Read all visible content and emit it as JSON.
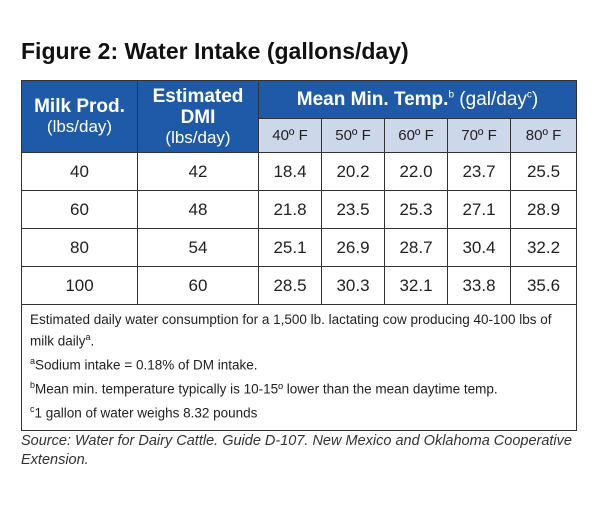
{
  "title": "Figure 2:  Water Intake (gallons/day)",
  "headers": {
    "milk_prod_main": "Milk Prod.",
    "milk_prod_sub": "(lbs/day)",
    "dmi_main": "Estimated DMI",
    "dmi_sub": "(lbs/day)",
    "mean_main": "Mean Min. Temp.",
    "mean_sup": "b",
    "mean_unit": "(gal/day",
    "mean_unit_sup": "c",
    "mean_unit_close": ")",
    "temps": [
      "40º F",
      "50º F",
      "60º F",
      "70º F",
      "80º F"
    ]
  },
  "rows": [
    {
      "milk": "40",
      "dmi": "42",
      "values": [
        "18.4",
        "20.2",
        "22.0",
        "23.7",
        "25.5"
      ]
    },
    {
      "milk": "60",
      "dmi": "48",
      "values": [
        "21.8",
        "23.5",
        "25.3",
        "27.1",
        "28.9"
      ]
    },
    {
      "milk": "80",
      "dmi": "54",
      "values": [
        "25.1",
        "26.9",
        "28.7",
        "30.4",
        "32.2"
      ]
    },
    {
      "milk": "100",
      "dmi": "60",
      "values": [
        "28.5",
        "30.3",
        "32.1",
        "33.8",
        "35.6"
      ]
    }
  ],
  "notes": {
    "main_text": "Estimated daily water consumption for a 1,500 lb. lactating cow producing 40-100 lbs of milk daily",
    "main_sup": "a",
    "main_end": ".",
    "note_a_mark": "a",
    "note_a": "Sodium intake = 0.18% of DM intake.",
    "note_b_mark": "b",
    "note_b": "Mean min. temperature typically is 10-15º lower than the mean daytime temp.",
    "note_c_mark": "c",
    "note_c": "1 gallon of water weighs 8.32 pounds"
  },
  "source": "Source: Water for Dairy Cattle. Guide D-107. New Mexico and Oklahoma Cooperative Extension.",
  "colors": {
    "header_blue": "#1f5aa8",
    "subheader_lavender": "#cdd7ea"
  }
}
